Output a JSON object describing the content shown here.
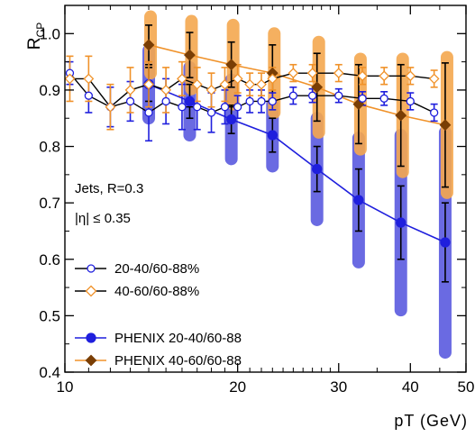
{
  "chart_data": {
    "type": "scatter",
    "x_scale": "log",
    "xlim": [
      10,
      50
    ],
    "ylim": [
      0.4,
      1.05
    ],
    "x_ticks": [
      10,
      20,
      30,
      40,
      50
    ],
    "y_ticks": [
      0.4,
      0.5,
      0.6,
      0.7,
      0.8,
      0.9,
      1.0
    ],
    "x_tick_labels": [
      "10",
      "20",
      "30",
      "40",
      "50"
    ],
    "y_tick_labels": [
      "0.4",
      "0.5",
      "0.6",
      "0.7",
      "0.8",
      "0.9",
      "1.0"
    ],
    "xlabel": "pT (GeV)",
    "ylabel_main": "R",
    "ylabel_sub": "CP",
    "annotations": [
      "Jets, R=0.3",
      "|η| ≤ 0.35"
    ],
    "legend_position": "bottom-left",
    "colors": {
      "blue": "#1f1fdd",
      "orange": "#f0922a",
      "blue_band": "#5a5adf",
      "orange_band": "#f5a84f"
    },
    "series": [
      {
        "name": "20-40/60-88%",
        "style": "open-circle-black-line",
        "x": [
          10.2,
          11,
          12,
          13,
          14,
          15,
          16,
          17,
          18,
          19,
          20,
          21,
          22,
          23,
          25,
          27,
          30,
          33,
          36,
          40,
          44
        ],
        "y": [
          0.93,
          0.89,
          0.87,
          0.88,
          0.86,
          0.88,
          0.87,
          0.87,
          0.86,
          0.87,
          0.87,
          0.88,
          0.88,
          0.88,
          0.89,
          0.89,
          0.89,
          0.885,
          0.885,
          0.88,
          0.86
        ],
        "err": [
          0.02,
          0.03,
          0.035,
          0.035,
          0.05,
          0.04,
          0.04,
          0.04,
          0.035,
          0.03,
          0.02,
          0.02,
          0.02,
          0.015,
          0.015,
          0.012,
          0.012,
          0.012,
          0.012,
          0.015,
          0.015
        ]
      },
      {
        "name": "40-60/60-88%",
        "style": "open-diamond-orange-line",
        "x": [
          10.2,
          11,
          12,
          13,
          14,
          15,
          16,
          17,
          18,
          19,
          20,
          21,
          22,
          23,
          25,
          27,
          30,
          33,
          36,
          40,
          44
        ],
        "y": [
          0.92,
          0.92,
          0.87,
          0.9,
          0.91,
          0.9,
          0.92,
          0.91,
          0.9,
          0.91,
          0.92,
          0.91,
          0.91,
          0.92,
          0.93,
          0.93,
          0.93,
          0.925,
          0.925,
          0.925,
          0.92
        ],
        "err": [
          0.04,
          0.04,
          0.04,
          0.04,
          0.04,
          0.04,
          0.03,
          0.03,
          0.03,
          0.03,
          0.025,
          0.02,
          0.02,
          0.02,
          0.015,
          0.015,
          0.015,
          0.015,
          0.015,
          0.015,
          0.015
        ]
      },
      {
        "name": "PHENIX 20-40/60-88",
        "style": "filled-circle-blue-line",
        "x": [
          14,
          16.5,
          19.5,
          23,
          27.5,
          32.5,
          38.5,
          46
        ],
        "y": [
          0.91,
          0.88,
          0.848,
          0.82,
          0.76,
          0.705,
          0.665,
          0.63
        ],
        "err": [
          0.03,
          0.03,
          0.025,
          0.03,
          0.04,
          0.055,
          0.065,
          0.07
        ],
        "band": [
          0.06,
          0.06,
          0.07,
          0.055,
          0.09,
          0.11,
          0.155,
          0.195
        ]
      },
      {
        "name": "PHENIX 40-60/60-88",
        "style": "filled-diamond-orange-line",
        "x": [
          14,
          16.5,
          19.5,
          23,
          27.5,
          32.5,
          38.5,
          46
        ],
        "y": [
          0.98,
          0.962,
          0.945,
          0.93,
          0.905,
          0.875,
          0.855,
          0.838
        ],
        "err": [
          0.035,
          0.04,
          0.04,
          0.05,
          0.06,
          0.07,
          0.09,
          0.11
        ],
        "band": [
          0.05,
          0.06,
          0.07,
          0.07,
          0.08,
          0.08,
          0.1,
          0.12
        ]
      }
    ]
  }
}
